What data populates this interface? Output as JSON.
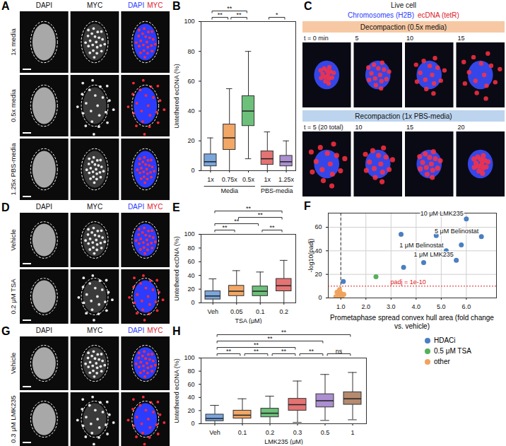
{
  "chart_data": [
    {
      "panel": "B",
      "type": "box",
      "categories": [
        "1x",
        "0.75x",
        "0.5x",
        "1x",
        "1.25x"
      ],
      "groups": [
        {
          "label": "Media",
          "from": 0,
          "to": 2
        },
        {
          "label": "PBS-media",
          "from": 3,
          "to": 4
        }
      ],
      "q1": [
        3,
        14,
        30,
        4,
        3
      ],
      "median": [
        6,
        22,
        40,
        8,
        6
      ],
      "q3": [
        11,
        31,
        50,
        13,
        10
      ],
      "whisker_low": [
        0,
        0,
        8,
        0,
        0
      ],
      "whisker_high": [
        22,
        55,
        80,
        26,
        20
      ],
      "colors": [
        "#7aa6dc",
        "#f2a766",
        "#6cc07a",
        "#e57373",
        "#ab8fd0"
      ],
      "ylabel": "Untethered ecDNA (%)",
      "ylim": [
        0,
        100
      ],
      "yticks": [
        0,
        20,
        40,
        60,
        80,
        100
      ],
      "significance": [
        {
          "from": 0,
          "to": 1,
          "label": "**"
        },
        {
          "from": 1,
          "to": 2,
          "label": "**"
        },
        {
          "from": 0,
          "to": 2,
          "label": "**"
        },
        {
          "from": 3,
          "to": 4,
          "label": "*"
        }
      ]
    },
    {
      "panel": "E",
      "type": "box",
      "categories": [
        "Veh",
        "0.05",
        "0.1",
        "0.2"
      ],
      "q1": [
        5,
        10,
        10,
        17
      ],
      "median": [
        10,
        17,
        17,
        25
      ],
      "q3": [
        17,
        25,
        24,
        35
      ],
      "whisker_low": [
        0,
        0,
        0,
        0
      ],
      "whisker_high": [
        35,
        47,
        45,
        62
      ],
      "colors": [
        "#7aa6dc",
        "#f2a766",
        "#6cc07a",
        "#e57373"
      ],
      "xlabel": "TSA (μM)",
      "ylabel": "Untethered ecDNA (%)",
      "ylim": [
        0,
        100
      ],
      "yticks": [
        0,
        20,
        40,
        60,
        80,
        100
      ],
      "significance": [
        {
          "from": 0,
          "to": 1,
          "label": "**"
        },
        {
          "from": 0,
          "to": 2,
          "label": "**"
        },
        {
          "from": 0,
          "to": 3,
          "label": "**"
        },
        {
          "from": 1,
          "to": 3,
          "label": "**"
        },
        {
          "from": 2,
          "to": 3,
          "label": "**"
        }
      ]
    },
    {
      "panel": "F",
      "type": "scatter",
      "xlabel": "Prometaphase spread convex hull area (fold change vs. vehicle)",
      "ylabel": "-log10(padj)",
      "xlim": [
        0.5,
        7.2
      ],
      "xticks": [
        1,
        2,
        3,
        4,
        5,
        6
      ],
      "ylim": [
        0,
        72
      ],
      "yticks": [
        0,
        20,
        40,
        60
      ],
      "grid": true,
      "legend": "bottom",
      "reference_lines": {
        "x": 1,
        "y": 10,
        "y_label": "padj = 1e-10"
      },
      "series": [
        {
          "name": "HDACi",
          "color": "#4a7fc1",
          "x": [
            1.1,
            3.4,
            3.5,
            4.3,
            4.8,
            5.2,
            5.6,
            5.8,
            6.0,
            6.6
          ],
          "y": [
            14,
            54,
            26,
            30,
            53,
            40,
            32,
            45,
            67,
            52
          ],
          "point_labels": [
            null,
            null,
            null,
            null,
            null,
            "1 μM Belinostat",
            "1 μM LMK235",
            null,
            "10 μM LMK235",
            "5 μM Belinostat"
          ]
        },
        {
          "name": "0.5 μM TSA",
          "color": "#55b05a",
          "x": [
            2.4
          ],
          "y": [
            18
          ],
          "point_labels": [
            null
          ]
        },
        {
          "name": "other",
          "color": "#f0a35e",
          "x": [
            0.8,
            0.85,
            0.9,
            0.95,
            1.0,
            1.05,
            1.12
          ],
          "y": [
            1,
            5,
            2,
            7,
            4,
            1.5,
            3
          ],
          "point_labels": [
            null,
            null,
            null,
            null,
            null,
            null,
            null
          ]
        }
      ]
    },
    {
      "panel": "H",
      "type": "box",
      "categories": [
        "Veh",
        "0.1",
        "0.2",
        "0.3",
        "0.5",
        "1"
      ],
      "q1": [
        4,
        8,
        10,
        20,
        25,
        29
      ],
      "median": [
        8,
        13,
        16,
        29,
        35,
        38
      ],
      "q3": [
        14,
        20,
        23,
        38,
        45,
        48
      ],
      "whisker_low": [
        0,
        0,
        0,
        2,
        5,
        6
      ],
      "whisker_high": [
        28,
        38,
        42,
        65,
        75,
        78
      ],
      "colors": [
        "#7aa6dc",
        "#f2a766",
        "#6cc07a",
        "#e57373",
        "#ab8fd0",
        "#b58a6e"
      ],
      "xlabel": "LMK235 (μM)",
      "ylabel": "Untethered ecDNA (%)",
      "ylim": [
        0,
        100
      ],
      "yticks": [
        0,
        20,
        40,
        60,
        80,
        100
      ],
      "significance": [
        {
          "from": 0,
          "to": 1,
          "label": "**"
        },
        {
          "from": 1,
          "to": 2,
          "label": "**"
        },
        {
          "from": 2,
          "to": 3,
          "label": "**"
        },
        {
          "from": 3,
          "to": 4,
          "label": "**"
        },
        {
          "from": 4,
          "to": 5,
          "label": "ns"
        },
        {
          "from": 0,
          "to": 3,
          "label": "**"
        },
        {
          "from": 0,
          "to": 4,
          "label": "**"
        },
        {
          "from": 0,
          "to": 5,
          "label": "**"
        }
      ]
    }
  ],
  "image_panels": [
    {
      "panel": "A",
      "type": "image_grid",
      "columns": [
        {
          "label": "DAPI"
        },
        {
          "label": "MYC"
        },
        {
          "labels": [
            "DAPI",
            "MYC"
          ],
          "colors": [
            "#2a3cff",
            "#e0202a"
          ]
        }
      ],
      "rows": [
        "1x media",
        "0.5x media",
        "1.25x PBS-media"
      ]
    },
    {
      "panel": "C",
      "type": "image_series",
      "title": "Live cell",
      "channels": [
        {
          "label": "Chromosomes (H2B)",
          "color": "#2a3cff"
        },
        {
          "label": "ecDNA (tetR)",
          "color": "#e0202a"
        }
      ],
      "rows": [
        {
          "label": "Decompaction (0.5x media)",
          "color": "#f6c9a4",
          "times": [
            "t = 0 min",
            "5",
            "10",
            "15"
          ]
        },
        {
          "label": "Recompaction (1x PBS-media)",
          "color": "#bcd4ee",
          "times": [
            "t = 5 (20 total)",
            "10",
            "15",
            "20"
          ]
        }
      ]
    },
    {
      "panel": "D",
      "type": "image_grid",
      "columns": [
        {
          "label": "DAPI"
        },
        {
          "label": "MYC"
        },
        {
          "labels": [
            "DAPI",
            "MYC"
          ],
          "colors": [
            "#2a3cff",
            "#e0202a"
          ]
        }
      ],
      "rows": [
        "Vehicle",
        "0.2 μM TSA"
      ]
    },
    {
      "panel": "G",
      "type": "image_grid",
      "columns": [
        {
          "label": "DAPI"
        },
        {
          "label": "MYC"
        },
        {
          "labels": [
            "DAPI",
            "MYC"
          ],
          "colors": [
            "#2a3cff",
            "#e0202a"
          ]
        }
      ],
      "rows": [
        "Vehicle",
        "0.3 μM LMK235"
      ]
    }
  ]
}
